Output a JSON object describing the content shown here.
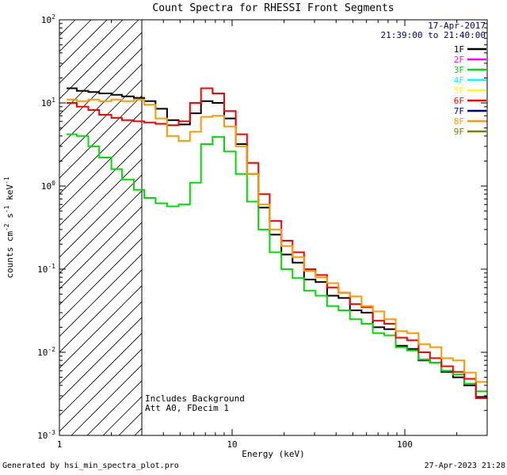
{
  "header": {
    "date": "17-Apr-2017",
    "time_range": "21:39:00 to 21:40:00"
  },
  "notes": {
    "line1": "Includes Background",
    "line2": "Att A0, FDecim 1"
  },
  "footer": {
    "left": "Generated by hsi_min_spectra_plot.pro",
    "right": "27-Apr-2023 21:28"
  },
  "colors": {
    "annotation": "#000080",
    "axis": "#000000",
    "background": "#ffffff"
  },
  "chart_data": {
    "type": "line",
    "subtype": "step-histogram",
    "title": "Count Spectra for RHESSI Front Segments",
    "xlabel": "Energy (keV)",
    "ylabel": "counts cm^-2 s^-1 keV^-1",
    "ylabel_parts": [
      {
        "text": "counts cm",
        "sup": false
      },
      {
        "text": "-2",
        "sup": true
      },
      {
        "text": " s",
        "sup": false
      },
      {
        "text": "-1",
        "sup": true
      },
      {
        "text": " keV",
        "sup": false
      },
      {
        "text": "-1",
        "sup": true
      }
    ],
    "x_scale": "log",
    "y_scale": "log",
    "xlim": [
      1,
      300
    ],
    "ylim": [
      0.001,
      100
    ],
    "x_tick_values": [
      1,
      10,
      100
    ],
    "x_tick_labels": [
      "1",
      "10",
      "100"
    ],
    "y_tick_exponents": [
      2,
      1,
      0,
      -1,
      -2,
      -3
    ],
    "grid": false,
    "legend_position": "top-right-inside",
    "hatched_region_keV": [
      1,
      3
    ],
    "bin_edges_keV": [
      1.1,
      1.26,
      1.47,
      1.7,
      2.0,
      2.3,
      2.7,
      3.1,
      3.6,
      4.2,
      4.9,
      5.7,
      6.6,
      7.7,
      9.0,
      10.5,
      12.2,
      14.2,
      16.5,
      19.3,
      22.4,
      26.1,
      30.4,
      35.5,
      41.3,
      48.1,
      56.1,
      65.3,
      76.1,
      88.6,
      103,
      120,
      140,
      163,
      190,
      221,
      258,
      300
    ],
    "series": [
      {
        "name": "1F",
        "color": "#000000",
        "visible": true,
        "values": [
          15,
          14,
          13.5,
          13,
          12.5,
          12,
          11.5,
          10.5,
          8.5,
          6.2,
          5.5,
          7.5,
          10.5,
          10.0,
          6.5,
          3.2,
          1.4,
          0.55,
          0.26,
          0.15,
          0.12,
          0.075,
          0.07,
          0.048,
          0.045,
          0.032,
          0.03,
          0.02,
          0.019,
          0.012,
          0.011,
          0.008,
          0.0075,
          0.0058,
          0.005,
          0.004,
          0.0029
        ]
      },
      {
        "name": "2F",
        "color": "#ff00ff",
        "visible": false,
        "values": []
      },
      {
        "name": "3F",
        "color": "#00dd00",
        "visible": true,
        "values": [
          4.2,
          4.0,
          3.0,
          2.2,
          1.6,
          1.2,
          0.9,
          0.72,
          0.62,
          0.57,
          0.6,
          1.1,
          3.2,
          3.9,
          2.6,
          1.4,
          0.65,
          0.3,
          0.16,
          0.1,
          0.078,
          0.055,
          0.048,
          0.036,
          0.032,
          0.025,
          0.022,
          0.017,
          0.016,
          0.0115,
          0.0105,
          0.0082,
          0.0075,
          0.006,
          0.0054,
          0.0042,
          0.0034
        ]
      },
      {
        "name": "4F",
        "color": "#00ffff",
        "visible": false,
        "values": []
      },
      {
        "name": "5F",
        "color": "#ffff00",
        "visible": false,
        "values": []
      },
      {
        "name": "6F",
        "color": "#ff0000",
        "visible": true,
        "values": [
          10,
          9,
          8.2,
          7.2,
          6.6,
          6.2,
          6.0,
          5.8,
          5.6,
          5.4,
          6.0,
          10.0,
          15.0,
          13.0,
          8.0,
          4.2,
          1.9,
          0.8,
          0.38,
          0.22,
          0.16,
          0.1,
          0.085,
          0.06,
          0.052,
          0.038,
          0.035,
          0.024,
          0.022,
          0.015,
          0.014,
          0.01,
          0.0085,
          0.0068,
          0.0058,
          0.0048,
          0.0028
        ]
      },
      {
        "name": "7F",
        "color": "#000099",
        "visible": false,
        "values": []
      },
      {
        "name": "8F",
        "color": "#ff9900",
        "visible": true,
        "values": [
          11,
          10.5,
          11,
          10.5,
          11,
          10.5,
          11,
          9.5,
          6.5,
          4.0,
          3.5,
          4.5,
          6.8,
          7.0,
          5.2,
          3.0,
          1.4,
          0.6,
          0.3,
          0.19,
          0.14,
          0.095,
          0.08,
          0.068,
          0.052,
          0.047,
          0.036,
          0.031,
          0.025,
          0.018,
          0.017,
          0.0125,
          0.0115,
          0.0085,
          0.008,
          0.0057,
          0.0044
        ]
      },
      {
        "name": "9F",
        "color": "#808000",
        "visible": false,
        "values": []
      }
    ]
  }
}
